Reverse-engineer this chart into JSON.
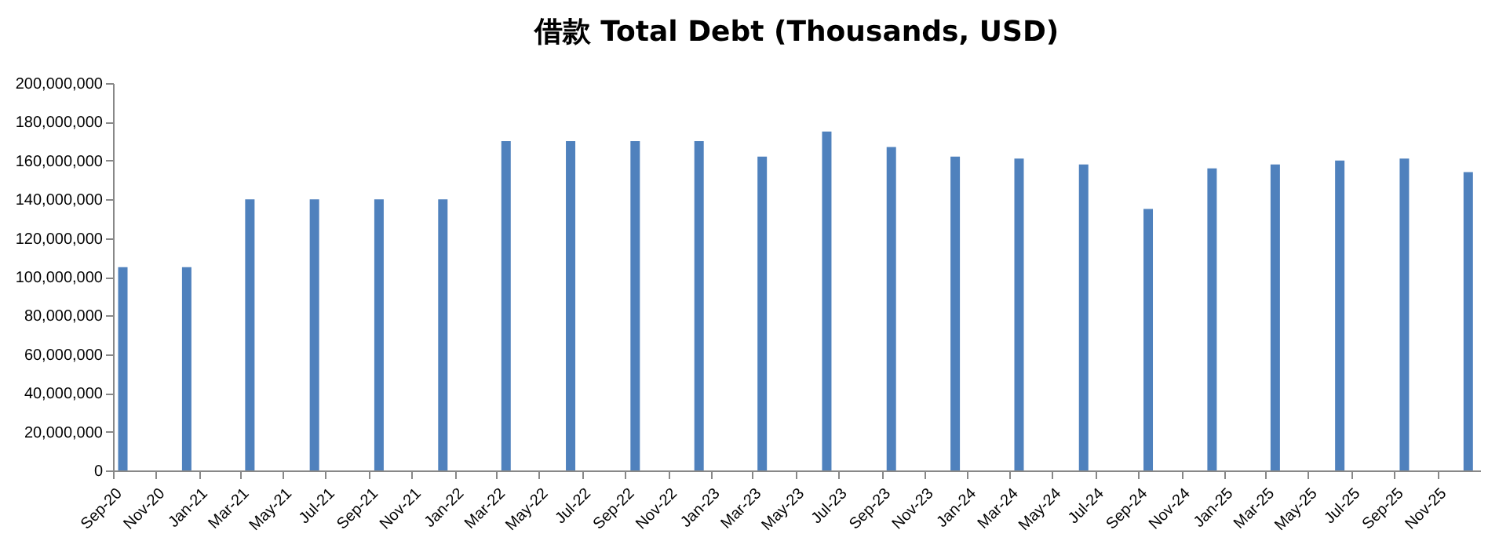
{
  "chart_data": {
    "type": "bar",
    "title": "借款 Total Debt (Thousands, USD)",
    "x": [
      "2020-09-15",
      "2020-12-15",
      "2021-03-15",
      "2021-06-15",
      "2021-09-15",
      "2021-12-15",
      "2022-03-15",
      "2022-06-15",
      "2022-09-15",
      "2022-12-15",
      "2023-03-15",
      "2023-06-15",
      "2023-09-15",
      "2023-12-15",
      "2024-03-15",
      "2024-06-15",
      "2024-09-15",
      "2024-12-15",
      "2025-03-15",
      "2025-06-15",
      "2025-09-15",
      "2025-12-15"
    ],
    "values": [
      105000000,
      105000000,
      140000000,
      140000000,
      140000000,
      140000000,
      170000000,
      170000000,
      170000000,
      170000000,
      162000000,
      175000000,
      167000000,
      162000000,
      161000000,
      158000000,
      135000000,
      156000000,
      158000000,
      160000000,
      161000000,
      154000000
    ],
    "color": "#4f81bd",
    "xlim": [
      "2020-09",
      "2026-01"
    ],
    "xticks": [
      {
        "value": "2020-09",
        "label": "Sep-20"
      },
      {
        "value": "2020-11",
        "label": "Nov-20"
      },
      {
        "value": "2021-01",
        "label": "Jan-21"
      },
      {
        "value": "2021-03",
        "label": "Mar-21"
      },
      {
        "value": "2021-05",
        "label": "May-21"
      },
      {
        "value": "2021-07",
        "label": "Jul-21"
      },
      {
        "value": "2021-09",
        "label": "Sep-21"
      },
      {
        "value": "2021-11",
        "label": "Nov-21"
      },
      {
        "value": "2022-01",
        "label": "Jan-22"
      },
      {
        "value": "2022-03",
        "label": "Mar-22"
      },
      {
        "value": "2022-05",
        "label": "May-22"
      },
      {
        "value": "2022-07",
        "label": "Jul-22"
      },
      {
        "value": "2022-09",
        "label": "Sep-22"
      },
      {
        "value": "2022-11",
        "label": "Nov-22"
      },
      {
        "value": "2023-01",
        "label": "Jan-23"
      },
      {
        "value": "2023-03",
        "label": "Mar-23"
      },
      {
        "value": "2023-05",
        "label": "May-23"
      },
      {
        "value": "2023-07",
        "label": "Jul-23"
      },
      {
        "value": "2023-09",
        "label": "Sep-23"
      },
      {
        "value": "2023-11",
        "label": "Nov-23"
      },
      {
        "value": "2024-01",
        "label": "Jan-24"
      },
      {
        "value": "2024-03",
        "label": "Mar-24"
      },
      {
        "value": "2024-05",
        "label": "May-24"
      },
      {
        "value": "2024-07",
        "label": "Jul-24"
      },
      {
        "value": "2024-09",
        "label": "Sep-24"
      },
      {
        "value": "2024-11",
        "label": "Nov-24"
      },
      {
        "value": "2025-01",
        "label": "Jan-25"
      },
      {
        "value": "2025-03",
        "label": "Mar-25"
      },
      {
        "value": "2025-05",
        "label": "May-25"
      },
      {
        "value": "2025-07",
        "label": "Jul-25"
      },
      {
        "value": "2025-09",
        "label": "Sep-25"
      },
      {
        "value": "2025-11",
        "label": "Nov-25"
      }
    ],
    "ylim": [
      0,
      200000000
    ],
    "yticks": [
      0,
      {
        "value": 20000000,
        "label": "20,000,000"
      },
      {
        "value": 40000000,
        "label": "40,000,000"
      },
      {
        "value": 60000000,
        "label": "60,000,000"
      },
      {
        "value": 80000000,
        "label": "80,000,000"
      },
      {
        "value": 100000000,
        "label": "100,000,000"
      },
      {
        "value": 120000000,
        "label": "120,000,000"
      },
      {
        "value": 140000000,
        "label": "140,000,000"
      },
      {
        "value": 160000000,
        "label": "160,000,000"
      },
      {
        "value": 180000000,
        "label": "180,000,000"
      },
      {
        "value": 200000000,
        "label": "200,000,000"
      }
    ],
    "grid": false,
    "legend": false
  }
}
